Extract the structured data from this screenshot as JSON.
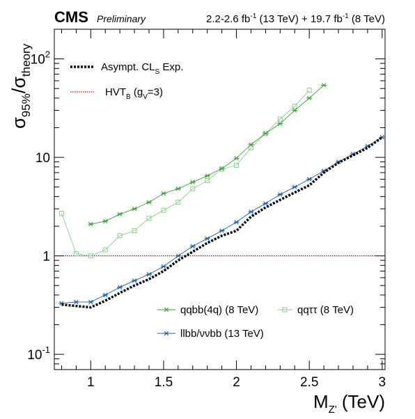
{
  "header": {
    "experiment": "CMS",
    "status": "Preliminary",
    "lumi_13_prefix": "2.2-2.6 fb",
    "lumi_13_exp": "-1",
    "lumi_13_suffix": " (13 TeV) + 19.7 fb",
    "lumi_8_exp": "-1",
    "lumi_8_suffix": " (8 TeV)"
  },
  "axes": {
    "xlabel_main": "M",
    "xlabel_sub": "Z'",
    "xlabel_unit": " (TeV)",
    "ylabel_sigma1": "σ",
    "ylabel_sub1": "95%",
    "ylabel_slash": "/",
    "ylabel_sigma2": "σ",
    "ylabel_sub2": "theory"
  },
  "legend_top": {
    "exp_main": "Asympt. CL",
    "exp_sub": "S",
    "exp_suffix": " Exp.",
    "hvt_main": "HVT",
    "hvt_sub": "B",
    "hvt_mid": " (g",
    "hvt_sub2": "V",
    "hvt_end": "=3)"
  },
  "legend_bottom": {
    "qqbb": "qqbb(4q) (8 TeV)",
    "qqtt": "qqττ (8 TeV)",
    "llbb": "llbb/ννbb (13 TeV)"
  },
  "colors": {
    "qqbb": "#3e9e3e",
    "qqtt": "#8fcf8f",
    "llbb": "#1f5f9f",
    "combined": "#000000",
    "theory": "#cc0000"
  },
  "chart_data": {
    "type": "line",
    "x_scale": "linear",
    "y_scale": "log",
    "xlim": [
      0.75,
      3.02
    ],
    "ylim": [
      0.07,
      200
    ],
    "x_ticks": [
      {
        "value": 1.0,
        "label": "1"
      },
      {
        "value": 1.5,
        "label": "1.5"
      },
      {
        "value": 2.0,
        "label": "2"
      },
      {
        "value": 2.5,
        "label": "2.5"
      },
      {
        "value": 3.0,
        "label": "3"
      }
    ],
    "y_ticks": [
      {
        "value": 0.1,
        "base": "10",
        "exp": "-1"
      },
      {
        "value": 1,
        "base": "1",
        "exp": ""
      },
      {
        "value": 10,
        "base": "10",
        "exp": ""
      },
      {
        "value": 100,
        "base": "10",
        "exp": "2"
      }
    ],
    "series": [
      {
        "name": "qqbb(4q) (8 TeV)",
        "marker": "star",
        "x": [
          1.0,
          1.1,
          1.2,
          1.3,
          1.4,
          1.5,
          1.6,
          1.7,
          1.8,
          1.9,
          2.0,
          2.1,
          2.2,
          2.3,
          2.4,
          2.5,
          2.6
        ],
        "y": [
          2.1,
          2.25,
          2.65,
          3.0,
          3.5,
          4.3,
          4.8,
          5.6,
          6.5,
          7.7,
          9.8,
          13.5,
          17.5,
          22.0,
          30.0,
          40.0,
          54.0
        ]
      },
      {
        "name": "qqττ (8 TeV)",
        "marker": "square",
        "x": [
          0.8,
          0.9,
          1.0,
          1.1,
          1.2,
          1.3,
          1.4,
          1.5,
          1.6,
          1.7,
          1.8,
          1.9,
          2.0,
          2.1,
          2.2,
          2.3,
          2.4,
          2.5
        ],
        "y": [
          2.7,
          1.05,
          1.0,
          1.15,
          1.6,
          1.8,
          2.4,
          2.9,
          3.5,
          4.8,
          5.8,
          7.6,
          8.3,
          12.5,
          17.5,
          24.5,
          33.0,
          48.0
        ]
      },
      {
        "name": "llbb/ννbb (13 TeV)",
        "marker": "star",
        "x": [
          0.8,
          0.9,
          1.0,
          1.1,
          1.2,
          1.3,
          1.4,
          1.5,
          1.6,
          1.7,
          1.8,
          1.9,
          2.0,
          2.1,
          2.2,
          2.3,
          2.4,
          2.5,
          2.6,
          2.7,
          2.8,
          2.9,
          3.0
        ],
        "y": [
          0.33,
          0.34,
          0.34,
          0.4,
          0.48,
          0.56,
          0.65,
          0.78,
          1.0,
          1.25,
          1.5,
          1.8,
          2.2,
          2.8,
          3.4,
          4.2,
          5.0,
          6.0,
          7.3,
          9.0,
          10.8,
          13.0,
          16.0
        ]
      },
      {
        "name": "Asympt. CLS Exp.",
        "marker": "none",
        "style": "dotted-thick",
        "x": [
          0.8,
          0.9,
          1.0,
          1.1,
          1.2,
          1.3,
          1.4,
          1.5,
          1.6,
          1.7,
          1.8,
          1.9,
          2.0,
          2.1,
          2.2,
          2.3,
          2.4,
          2.5,
          2.6,
          2.7,
          2.8,
          2.9,
          3.0
        ],
        "y": [
          0.32,
          0.31,
          0.3,
          0.35,
          0.42,
          0.5,
          0.58,
          0.7,
          0.9,
          1.1,
          1.35,
          1.6,
          1.8,
          2.5,
          3.1,
          3.7,
          4.4,
          5.2,
          7.0,
          8.8,
          10.5,
          12.5,
          16.0
        ]
      },
      {
        "name": "HVTB (gV=3)",
        "marker": "none",
        "style": "dotted-thin",
        "x": [
          0.75,
          3.02
        ],
        "y": [
          1,
          1
        ]
      }
    ]
  }
}
